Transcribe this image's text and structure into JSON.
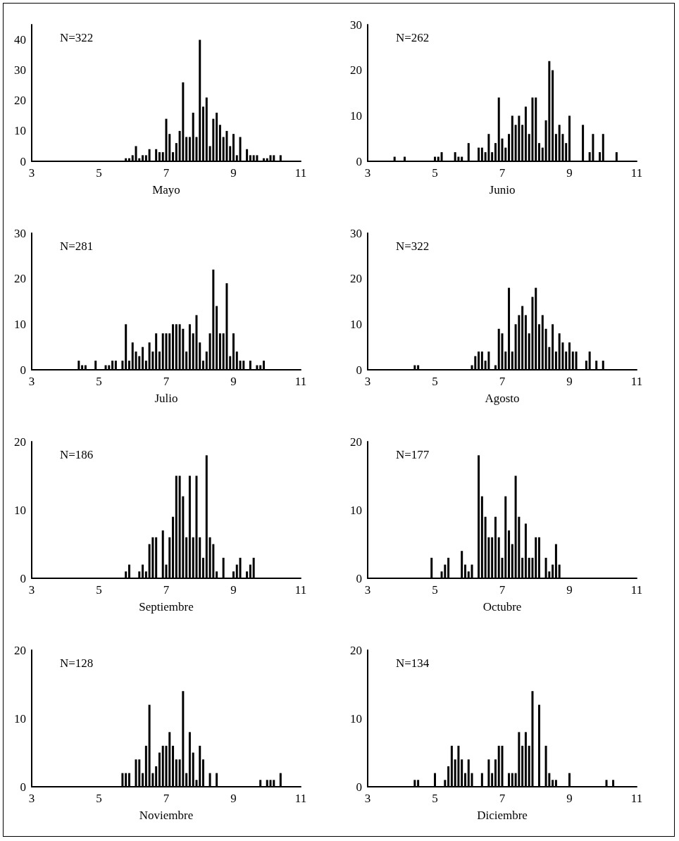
{
  "chart_data": [
    {
      "type": "bar",
      "xlabel": "Mayo",
      "annotations": [
        "N=322"
      ],
      "color": "#000000",
      "xlim": [
        3,
        11
      ],
      "xticks": [
        3,
        5,
        7,
        9,
        11
      ],
      "ylim": [
        0,
        45
      ],
      "yticks": [
        0,
        10,
        20,
        30,
        40
      ],
      "x": [
        5.8,
        5.9,
        6.0,
        6.1,
        6.2,
        6.3,
        6.4,
        6.5,
        6.7,
        6.8,
        6.9,
        7.0,
        7.1,
        7.2,
        7.3,
        7.4,
        7.5,
        7.6,
        7.7,
        7.8,
        7.9,
        8.0,
        8.1,
        8.2,
        8.3,
        8.4,
        8.5,
        8.6,
        8.7,
        8.8,
        8.9,
        9.0,
        9.1,
        9.2,
        9.4,
        9.5,
        9.6,
        9.7,
        9.9,
        10.0,
        10.1,
        10.2,
        10.4
      ],
      "values": [
        1,
        1,
        2,
        5,
        1,
        2,
        2,
        4,
        4,
        3,
        3,
        14,
        9,
        3,
        6,
        10,
        26,
        8,
        8,
        16,
        8,
        40,
        18,
        21,
        5,
        14,
        16,
        12,
        8,
        10,
        5,
        9,
        2,
        8,
        4,
        2,
        2,
        2,
        1,
        1,
        2,
        2,
        2
      ]
    },
    {
      "type": "bar",
      "xlabel": "Junio",
      "annotations": [
        "N=262"
      ],
      "color": "#000000",
      "xlim": [
        3,
        11
      ],
      "xticks": [
        3,
        5,
        7,
        9,
        11
      ],
      "ylim": [
        0,
        30
      ],
      "yticks": [
        0,
        10,
        20,
        30
      ],
      "x": [
        3.8,
        4.1,
        5.0,
        5.1,
        5.2,
        5.6,
        5.7,
        5.8,
        6.0,
        6.3,
        6.4,
        6.5,
        6.6,
        6.7,
        6.8,
        6.9,
        7.0,
        7.1,
        7.2,
        7.3,
        7.4,
        7.5,
        7.6,
        7.7,
        7.8,
        7.9,
        8.0,
        8.1,
        8.2,
        8.3,
        8.4,
        8.5,
        8.6,
        8.7,
        8.8,
        8.9,
        9.0,
        9.4,
        9.6,
        9.7,
        9.9,
        10.0,
        10.4
      ],
      "values": [
        1,
        1,
        1,
        1,
        2,
        2,
        1,
        1,
        4,
        3,
        3,
        2,
        6,
        2,
        4,
        14,
        5,
        3,
        6,
        10,
        8,
        10,
        8,
        12,
        6,
        14,
        14,
        4,
        3,
        9,
        22,
        20,
        6,
        8,
        6,
        4,
        10,
        8,
        2,
        6,
        2,
        6,
        2
      ]
    },
    {
      "type": "bar",
      "xlabel": "Julio",
      "annotations": [
        "N=281"
      ],
      "color": "#000000",
      "xlim": [
        3,
        11
      ],
      "xticks": [
        3,
        5,
        7,
        9,
        11
      ],
      "ylim": [
        0,
        30
      ],
      "yticks": [
        0,
        10,
        20,
        30
      ],
      "x": [
        4.4,
        4.5,
        4.6,
        4.9,
        5.2,
        5.3,
        5.4,
        5.5,
        5.7,
        5.8,
        5.9,
        6.0,
        6.1,
        6.2,
        6.3,
        6.4,
        6.5,
        6.6,
        6.7,
        6.8,
        6.9,
        7.0,
        7.1,
        7.2,
        7.3,
        7.4,
        7.5,
        7.6,
        7.7,
        7.8,
        7.9,
        8.0,
        8.1,
        8.2,
        8.3,
        8.4,
        8.5,
        8.6,
        8.7,
        8.8,
        8.9,
        9.0,
        9.1,
        9.2,
        9.3,
        9.5,
        9.7,
        9.8,
        9.9
      ],
      "values": [
        2,
        1,
        1,
        2,
        1,
        1,
        2,
        2,
        2,
        10,
        2,
        6,
        4,
        3,
        5,
        2,
        6,
        4,
        8,
        4,
        8,
        8,
        8,
        10,
        10,
        10,
        9,
        4,
        10,
        8,
        12,
        6,
        2,
        4,
        8,
        22,
        14,
        8,
        8,
        19,
        3,
        8,
        4,
        2,
        2,
        2,
        1,
        1,
        2
      ]
    },
    {
      "type": "bar",
      "xlabel": "Agosto",
      "annotations": [
        "N=322"
      ],
      "color": "#000000",
      "xlim": [
        3,
        11
      ],
      "xticks": [
        3,
        5,
        7,
        9,
        11
      ],
      "ylim": [
        0,
        30
      ],
      "yticks": [
        0,
        10,
        20,
        30
      ],
      "x": [
        4.4,
        4.5,
        6.1,
        6.2,
        6.3,
        6.4,
        6.5,
        6.6,
        6.8,
        6.9,
        7.0,
        7.1,
        7.2,
        7.3,
        7.4,
        7.5,
        7.6,
        7.7,
        7.8,
        7.9,
        8.0,
        8.1,
        8.2,
        8.3,
        8.4,
        8.5,
        8.6,
        8.7,
        8.8,
        8.9,
        9.0,
        9.1,
        9.2,
        9.5,
        9.6,
        9.8,
        10.0
      ],
      "values": [
        1,
        1,
        1,
        3,
        4,
        4,
        2,
        4,
        1,
        9,
        8,
        4,
        18,
        4,
        10,
        12,
        14,
        12,
        8,
        16,
        18,
        10,
        12,
        9,
        5,
        10,
        4,
        8,
        6,
        4,
        6,
        4,
        4,
        2,
        4,
        2,
        2
      ]
    },
    {
      "type": "bar",
      "xlabel": "Septiembre",
      "annotations": [
        "N=186"
      ],
      "color": "#000000",
      "xlim": [
        3,
        11
      ],
      "xticks": [
        3,
        5,
        7,
        9,
        11
      ],
      "ylim": [
        0,
        20
      ],
      "yticks": [
        0,
        10,
        20
      ],
      "x": [
        5.8,
        5.9,
        6.2,
        6.3,
        6.4,
        6.5,
        6.6,
        6.7,
        6.9,
        7.0,
        7.1,
        7.2,
        7.3,
        7.4,
        7.5,
        7.6,
        7.7,
        7.8,
        7.9,
        8.0,
        8.1,
        8.2,
        8.3,
        8.4,
        8.5,
        8.7,
        9.0,
        9.1,
        9.2,
        9.4,
        9.5,
        9.6
      ],
      "values": [
        1,
        2,
        1,
        2,
        1,
        5,
        6,
        6,
        7,
        2,
        6,
        9,
        15,
        15,
        12,
        6,
        15,
        6,
        15,
        6,
        3,
        18,
        6,
        5,
        1,
        3,
        1,
        2,
        3,
        1,
        2,
        3
      ]
    },
    {
      "type": "bar",
      "xlabel": "Octubre",
      "annotations": [
        "N=177"
      ],
      "color": "#000000",
      "xlim": [
        3,
        11
      ],
      "xticks": [
        3,
        5,
        7,
        9,
        11
      ],
      "ylim": [
        0,
        20
      ],
      "yticks": [
        0,
        10,
        20
      ],
      "x": [
        4.9,
        5.2,
        5.3,
        5.4,
        5.8,
        5.9,
        6.0,
        6.1,
        6.3,
        6.4,
        6.5,
        6.6,
        6.7,
        6.8,
        6.9,
        7.0,
        7.1,
        7.2,
        7.3,
        7.4,
        7.5,
        7.6,
        7.7,
        7.8,
        7.9,
        8.0,
        8.1,
        8.3,
        8.4,
        8.5,
        8.6,
        8.7
      ],
      "values": [
        3,
        1,
        2,
        3,
        4,
        2,
        1,
        2,
        18,
        12,
        9,
        6,
        6,
        9,
        6,
        3,
        12,
        7,
        5,
        15,
        9,
        3,
        8,
        3,
        3,
        6,
        6,
        3,
        1,
        2,
        5,
        2
      ]
    },
    {
      "type": "bar",
      "xlabel": "Noviembre",
      "annotations": [
        "N=128"
      ],
      "color": "#000000",
      "xlim": [
        3,
        11
      ],
      "xticks": [
        3,
        5,
        7,
        9,
        11
      ],
      "ylim": [
        0,
        20
      ],
      "yticks": [
        0,
        10,
        20
      ],
      "x": [
        5.7,
        5.8,
        5.9,
        6.1,
        6.2,
        6.3,
        6.4,
        6.5,
        6.6,
        6.7,
        6.8,
        6.9,
        7.0,
        7.1,
        7.2,
        7.3,
        7.4,
        7.5,
        7.6,
        7.7,
        7.8,
        7.9,
        8.0,
        8.1,
        8.3,
        8.5,
        9.8,
        10.0,
        10.1,
        10.2,
        10.4
      ],
      "values": [
        2,
        2,
        2,
        4,
        4,
        2,
        6,
        12,
        2,
        3,
        5,
        6,
        6,
        8,
        6,
        4,
        4,
        14,
        2,
        8,
        5,
        1,
        6,
        4,
        2,
        2,
        1,
        1,
        1,
        1,
        2
      ]
    },
    {
      "type": "bar",
      "xlabel": "Diciembre",
      "annotations": [
        "N=134"
      ],
      "color": "#000000",
      "xlim": [
        3,
        11
      ],
      "xticks": [
        3,
        5,
        7,
        9,
        11
      ],
      "ylim": [
        0,
        20
      ],
      "yticks": [
        0,
        10,
        20
      ],
      "x": [
        4.4,
        4.5,
        5.0,
        5.3,
        5.4,
        5.5,
        5.6,
        5.7,
        5.8,
        5.9,
        6.0,
        6.1,
        6.4,
        6.6,
        6.7,
        6.8,
        6.9,
        7.0,
        7.2,
        7.3,
        7.4,
        7.5,
        7.6,
        7.7,
        7.8,
        7.9,
        8.1,
        8.3,
        8.4,
        8.5,
        8.6,
        9.0,
        10.1,
        10.3
      ],
      "values": [
        1,
        1,
        2,
        1,
        3,
        6,
        4,
        6,
        4,
        2,
        4,
        2,
        2,
        4,
        2,
        4,
        6,
        6,
        2,
        2,
        2,
        8,
        6,
        8,
        6,
        14,
        12,
        6,
        2,
        1,
        1,
        2,
        1,
        1
      ]
    }
  ]
}
